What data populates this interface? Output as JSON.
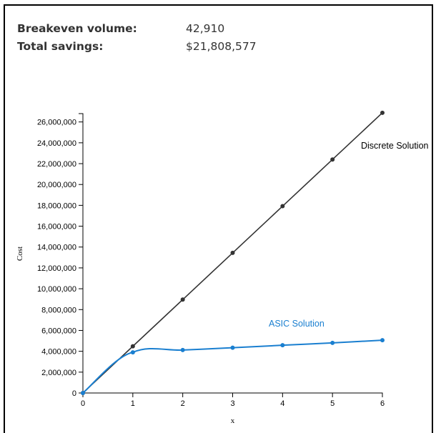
{
  "summary": {
    "breakeven_label": "Breakeven volume:",
    "breakeven_value": "42,910",
    "savings_label": "Total savings:",
    "savings_value": "$21,808,577"
  },
  "chart_data": {
    "type": "line",
    "title": "",
    "xlabel": "x",
    "ylabel": "Cost",
    "xlim": [
      0,
      6
    ],
    "ylim": [
      0,
      26800000
    ],
    "x_ticks": [
      0,
      1,
      2,
      3,
      4,
      5,
      6
    ],
    "x_tick_labels": [
      "0",
      "1",
      "2",
      "3",
      "4",
      "5",
      "6"
    ],
    "y_ticks": [
      0,
      2000000,
      4000000,
      6000000,
      8000000,
      10000000,
      12000000,
      14000000,
      16000000,
      18000000,
      20000000,
      22000000,
      24000000,
      26000000
    ],
    "y_tick_labels": [
      "0",
      "2,000,000",
      "4,000,000",
      "6,000,000",
      "8,000,000",
      "10,000,000",
      "12,000,000",
      "14,000,000",
      "16,000,000",
      "18,000,000",
      "20,000,000",
      "22,000,000",
      "24,000,000",
      "26,000,000"
    ],
    "grid": false,
    "series": [
      {
        "name": "Discrete Solution",
        "color": "#333333",
        "x": [
          0,
          1,
          2,
          3,
          4,
          5,
          6
        ],
        "values": [
          0,
          4480000,
          8960000,
          13440000,
          17920000,
          22400000,
          26880000
        ]
      },
      {
        "name": "ASIC Solution",
        "color": "#1a7fd0",
        "x": [
          0,
          1,
          2,
          3,
          4,
          5,
          6
        ],
        "values": [
          0,
          3900000,
          4120000,
          4340000,
          4580000,
          4810000,
          5060000
        ]
      }
    ]
  }
}
